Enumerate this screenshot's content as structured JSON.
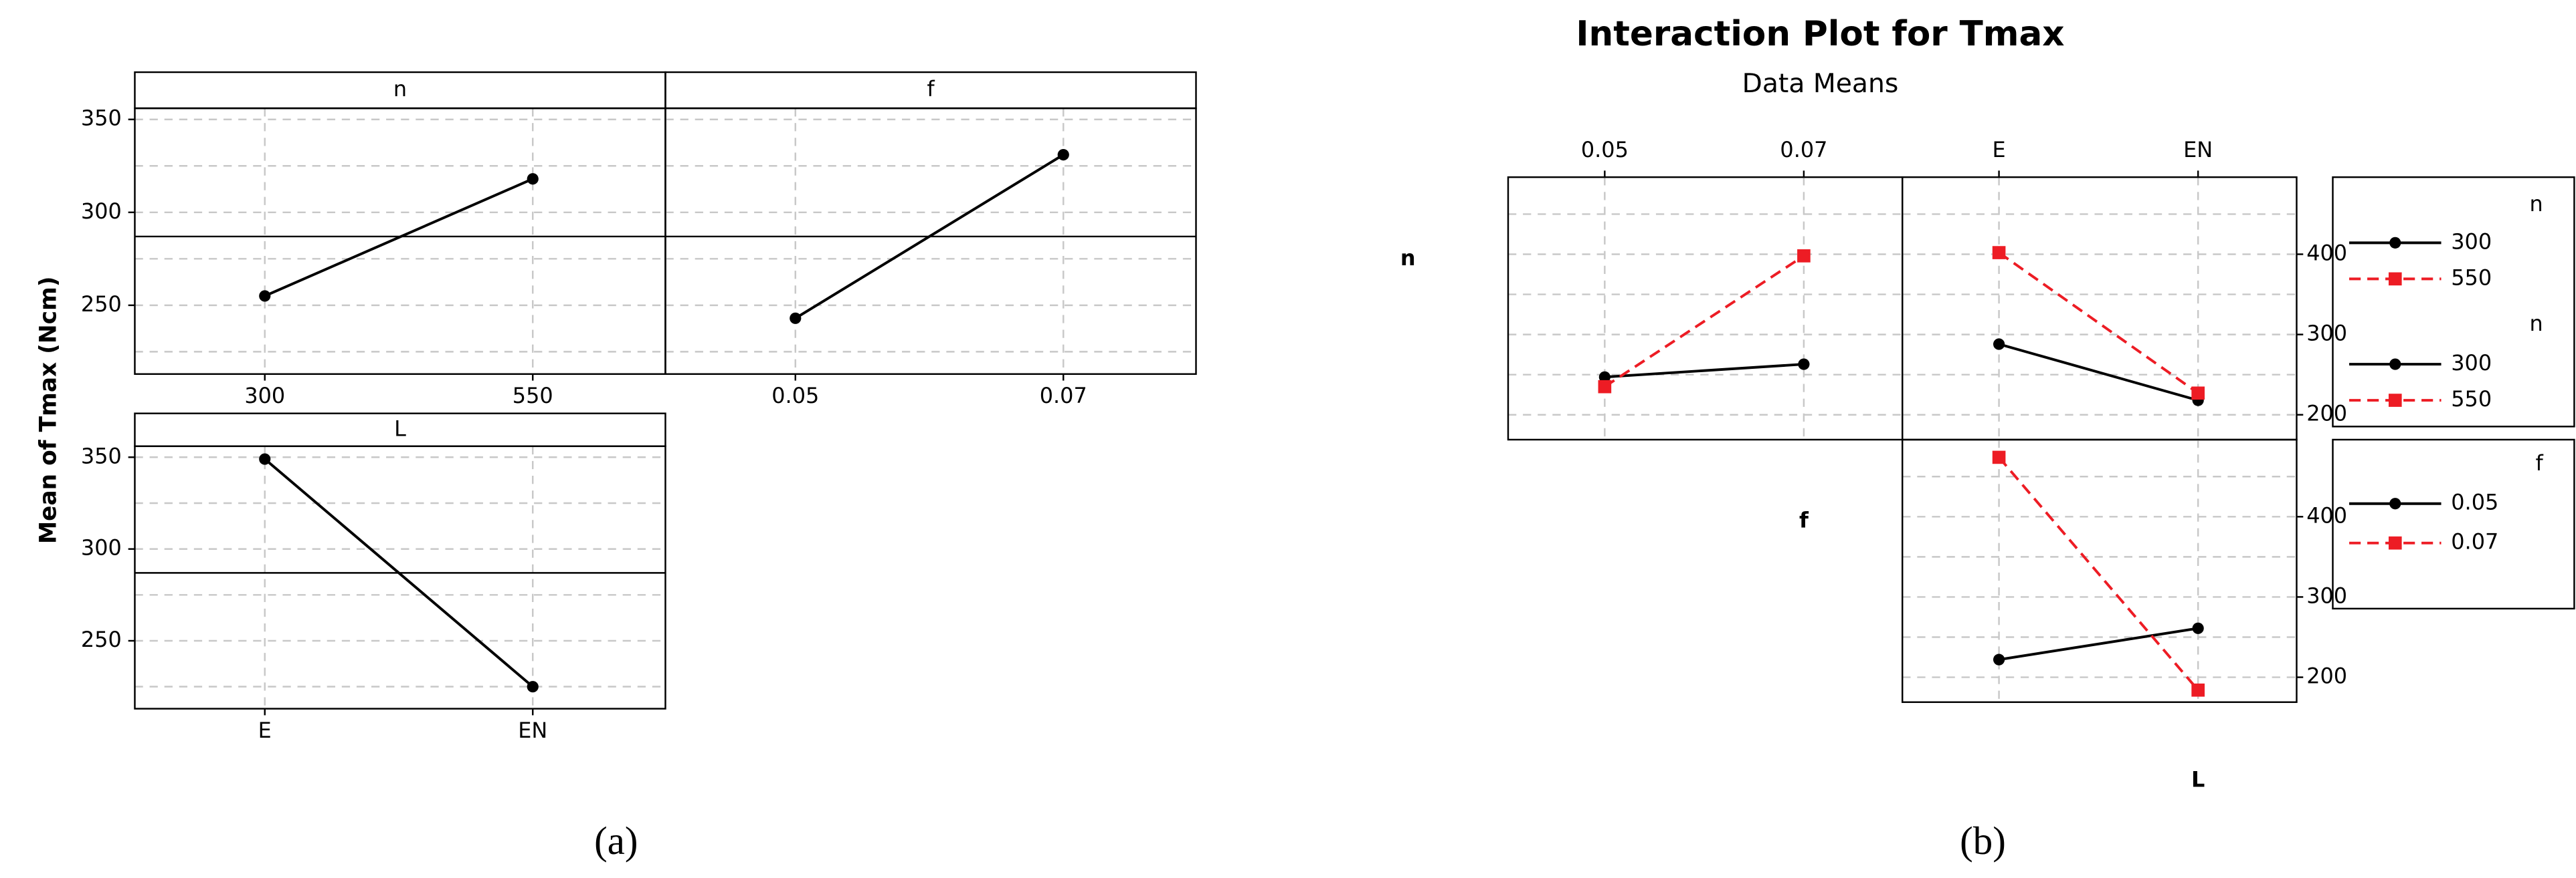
{
  "chart_data": [
    {
      "type": "line",
      "ylabel": "Mean of Tmax (Ncm)",
      "caption": "(a)",
      "color": "#000000",
      "ylim": [
        213,
        356
      ],
      "yticks": [
        250,
        300,
        350
      ],
      "minor_yticks": [
        225,
        250,
        275,
        300,
        325,
        350
      ],
      "grid": true,
      "reference_line": 287,
      "panels": [
        {
          "title": "n",
          "categories": [
            "300",
            "550"
          ],
          "values": [
            255,
            318
          ]
        },
        {
          "title": "f",
          "categories": [
            "0.05",
            "0.07"
          ],
          "values": [
            243,
            331
          ]
        },
        {
          "title": "L",
          "categories": [
            "E",
            "EN"
          ],
          "values": [
            349,
            225
          ]
        }
      ]
    },
    {
      "type": "interaction",
      "title": "Interaction Plot for Tmax",
      "subtitle": "Data Means",
      "caption": "(b)",
      "factors": [
        "n",
        "f",
        "L"
      ],
      "ylim": [
        169,
        496
      ],
      "yticks": [
        200,
        300,
        400
      ],
      "minor_yticks": [
        200,
        250,
        300,
        350,
        400,
        450
      ],
      "grid": true,
      "panels": [
        {
          "legend_title": "n",
          "categories": [
            "0.05",
            "0.07"
          ],
          "series": [
            {
              "name": "300",
              "color": "#000000",
              "values": [
                247,
                263
              ]
            },
            {
              "name": "550",
              "color": "#ed1c24",
              "values": [
                235,
                398
              ]
            }
          ]
        },
        {
          "legend_title": "n",
          "categories": [
            "E",
            "EN"
          ],
          "series": [
            {
              "name": "300",
              "color": "#000000",
              "values": [
                288,
                218
              ]
            },
            {
              "name": "550",
              "color": "#ed1c24",
              "values": [
                402,
                227
              ]
            }
          ]
        },
        {
          "legend_title": "f",
          "categories": [
            null,
            null
          ],
          "series": [
            {
              "name": "0.05",
              "color": "#000000",
              "values": [
                222,
                261
              ]
            },
            {
              "name": "0.07",
              "color": "#ed1c24",
              "values": [
                474,
                184
              ]
            }
          ]
        }
      ]
    }
  ]
}
